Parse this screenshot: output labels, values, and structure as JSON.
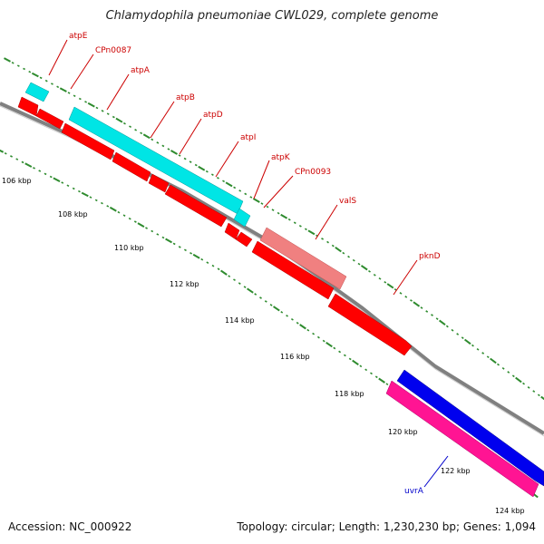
{
  "title": "Chlamydophila pneumoniae CWL029, complete genome",
  "footer": {
    "accession_label": "Accession:",
    "accession": "NC_000922",
    "topology_label": "Topology:",
    "topology": "circular",
    "length_label": "Length:",
    "length": "1,230,230 bp",
    "genes_label": "Genes:",
    "genes": "1,094"
  },
  "colors": {
    "backbone": "#808080",
    "tick": "#2e8b2e",
    "forward_cds": "#ff0000",
    "reverse_cds": "#0000ee",
    "forward_rna": "#00e5e5",
    "forward_other": "#f08080",
    "reverse_other": "#ff1493",
    "label_forward": "#cc0000",
    "label_reverse": "#0000cc"
  },
  "scale_labels": [
    "106 kbp",
    "108 kbp",
    "110 kbp",
    "112 kbp",
    "114 kbp",
    "116 kbp",
    "118 kbp",
    "120 kbp",
    "122 kbp",
    "124 kbp"
  ],
  "gene_labels": [
    {
      "name": "atpE",
      "color": "label_forward"
    },
    {
      "name": "CPn0087",
      "color": "label_forward"
    },
    {
      "name": "atpA",
      "color": "label_forward"
    },
    {
      "name": "atpB",
      "color": "label_forward"
    },
    {
      "name": "atpD",
      "color": "label_forward"
    },
    {
      "name": "atpI",
      "color": "label_forward"
    },
    {
      "name": "atpK",
      "color": "label_forward"
    },
    {
      "name": "CPn0093",
      "color": "label_forward"
    },
    {
      "name": "valS",
      "color": "label_forward"
    },
    {
      "name": "pknD",
      "color": "label_forward"
    },
    {
      "name": "uvrA",
      "color": "label_reverse"
    }
  ]
}
